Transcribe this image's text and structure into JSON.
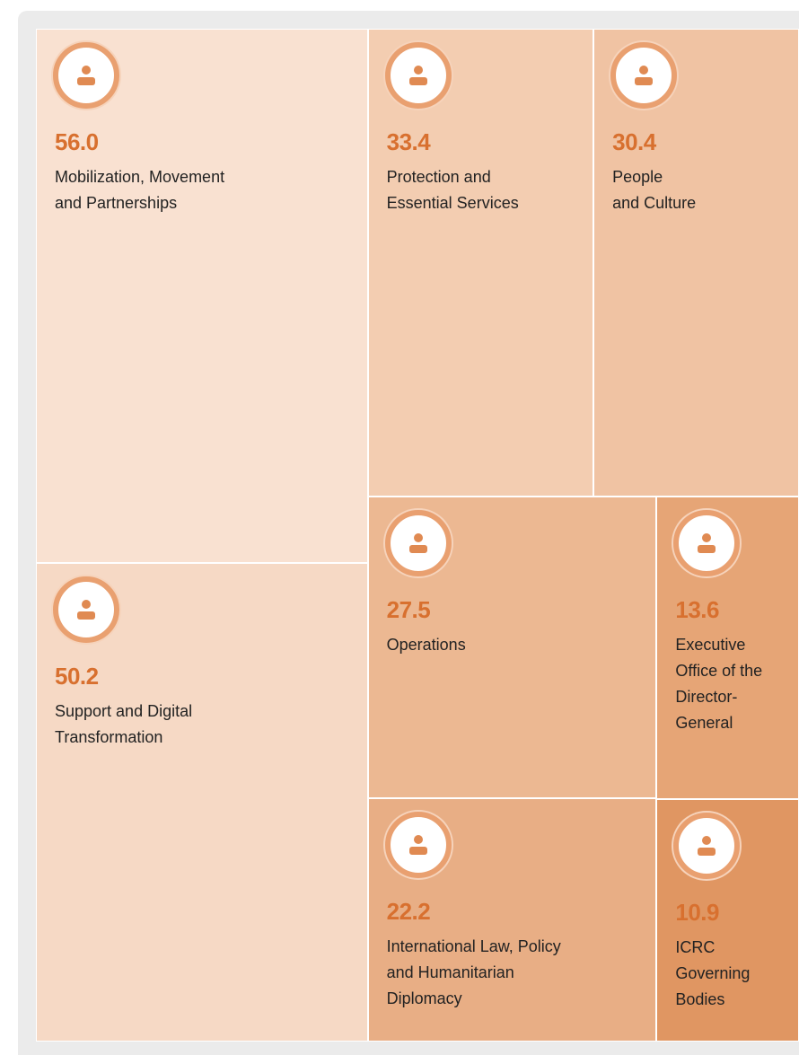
{
  "chart_data": {
    "type": "treemap",
    "categories": [
      "Mobilization, Movement\nand Partnerships",
      "Protection and\nEssential Services",
      "People\nand Culture",
      "Support and Digital\nTransformation",
      "Operations",
      "Executive\nOffice of the\nDirector-General",
      "International Law, Policy\nand Humanitarian\nDiplomacy",
      "ICRC\nGoverning\nBodies"
    ],
    "values": [
      56.0,
      33.4,
      30.4,
      50.2,
      27.5,
      13.6,
      22.2,
      10.9
    ],
    "value_labels": [
      "56.0",
      "33.4",
      "30.4",
      "50.2",
      "27.5",
      "13.6",
      "22.2",
      "10.9"
    ],
    "colors": [
      "#f9e1d1",
      "#f3cdb1",
      "#f0c3a3",
      "#f6d9c5",
      "#ecb892",
      "#e6a576",
      "#e8ae85",
      "#e09662"
    ],
    "value_color": "#d8702f"
  }
}
